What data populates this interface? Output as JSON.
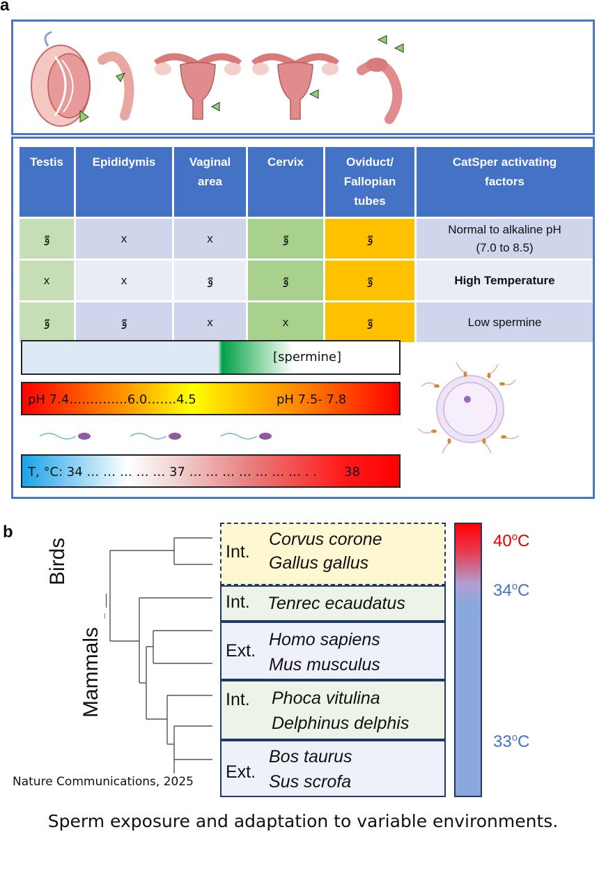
{
  "panel_a": {
    "letter": "a",
    "table": {
      "headers": [
        "Testis",
        "Epididymis",
        "Vaginal area",
        "Cervix",
        "Oviduct/ Fallopian tubes",
        "CatSper activating factors"
      ],
      "header_lines": [
        [
          "Testis"
        ],
        [
          "Epididymis"
        ],
        [
          "Vaginal",
          "area"
        ],
        [
          "Cervix"
        ],
        [
          "Oviduct/",
          "Fallopian",
          "tubes"
        ],
        [
          "CatSper activating",
          "factors"
        ]
      ],
      "rows": [
        {
          "cells": [
            "ٷ",
            "x",
            "x",
            "ٷ",
            "ٷ"
          ],
          "factor_lines": [
            "Normal to alkaline pH",
            "(7.0 to 8.5)"
          ]
        },
        {
          "cells": [
            "x",
            "x",
            "ٷ",
            "ٷ",
            "ٷ"
          ],
          "factor_lines": [
            "High Temperature"
          ]
        },
        {
          "cells": [
            "ٷ",
            "ٷ",
            "x",
            "x",
            "ٷ"
          ],
          "factor_lines": [
            "Low spermine"
          ]
        }
      ]
    },
    "spermine_label": "[spermine]",
    "ph_left": "pH  7.4…………..6.0…….4.5",
    "ph_right": "pH 7.5- 7.8",
    "temp_left": "T, °C:  34 … … … … … 37 … … … … … … … . .",
    "temp_right": "38"
  },
  "panel_b": {
    "letter": "b",
    "clade_birds": "Birds",
    "clade_mammals": "Mammals",
    "groups": [
      {
        "type": "Int.",
        "species": [
          "Corvus corone",
          "Gallus gallus"
        ]
      },
      {
        "type": "Int.",
        "species": [
          "Tenrec ecaudatus"
        ]
      },
      {
        "type": "Ext.",
        "species": [
          "Homo sapiens",
          "Mus musculus"
        ]
      },
      {
        "type": "Int.",
        "species": [
          "Phoca vitulina",
          "Delphinus delphis"
        ]
      },
      {
        "type": "Ext.",
        "species": [
          "Bos taurus",
          "Sus scrofa"
        ]
      }
    ],
    "temps": [
      {
        "base": "40",
        "sup": "o",
        "unit": "C",
        "color": "#e00000"
      },
      {
        "base": "34",
        "sup": "o",
        "unit": "C",
        "color": "#4472c4"
      },
      {
        "base": "33",
        "sup": "o",
        "unit": "C",
        "color": "#4472c4"
      }
    ]
  },
  "credit": "Nature Communications, 2025",
  "caption": "Sperm exposure and adaptation to variable environments."
}
